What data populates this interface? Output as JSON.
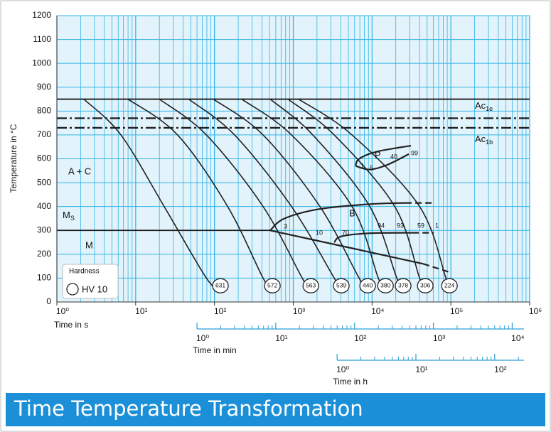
{
  "chart_data": {
    "type": "line",
    "title": "Time Temperature Transformation",
    "xlabel": "Time in s",
    "ylabel": "Temperature in °C",
    "xscale": "log",
    "xlim": [
      1,
      1000000
    ],
    "ylim": [
      0,
      1200
    ],
    "grid": true,
    "xticks": [
      {
        "value": 1,
        "label": "10⁰"
      },
      {
        "value": 10,
        "label": "10¹"
      },
      {
        "value": 100,
        "label": "10²"
      },
      {
        "value": 1000,
        "label": "10³"
      },
      {
        "value": 10000,
        "label": "10⁴"
      },
      {
        "value": 100000,
        "label": "10⁵"
      },
      {
        "value": 1000000,
        "label": "10⁶"
      }
    ],
    "yticks": [
      0,
      100,
      200,
      300,
      400,
      500,
      600,
      700,
      800,
      900,
      1000,
      1100,
      1200
    ],
    "min_axis": {
      "label": "Time in min",
      "ticks": [
        {
          "value": 60,
          "label": "10⁰"
        },
        {
          "value": 600,
          "label": "10¹"
        },
        {
          "value": 6000,
          "label": "10²"
        },
        {
          "value": 60000,
          "label": "10³"
        },
        {
          "value": 600000,
          "label": "10⁴"
        }
      ]
    },
    "hour_axis": {
      "label": "Time in h",
      "ticks": [
        {
          "value": 3600,
          "label": "10⁰"
        },
        {
          "value": 36000,
          "label": "10¹"
        },
        {
          "value": 360000,
          "label": "10²"
        }
      ]
    },
    "series": [
      {
        "color": "#222222",
        "hardness": 631,
        "x": [
          2.2,
          6.5,
          23,
          79,
          119
        ],
        "y": [
          850,
          700,
          400,
          100,
          50
        ]
      },
      {
        "color": "#222222",
        "hardness": 572,
        "x": [
          8,
          34,
          147,
          414,
          543
        ],
        "y": [
          850,
          700,
          400,
          100,
          50
        ]
      },
      {
        "color": "#222222",
        "hardness": 563,
        "x": [
          20,
          79,
          414,
          1300,
          1670
        ],
        "y": [
          850,
          700,
          400,
          100,
          50
        ]
      },
      {
        "color": "#222222",
        "hardness": 539,
        "x": [
          47,
          180,
          951,
          3310,
          4070
        ],
        "y": [
          850,
          700,
          400,
          100,
          50
        ]
      },
      {
        "color": "#222222",
        "hardness": 440,
        "x": [
          97,
          414,
          2180,
          6850,
          8790
        ],
        "y": [
          850,
          700,
          400,
          100,
          50
        ]
      },
      {
        "color": "#222222",
        "hardness": 380,
        "x": [
          222,
          951,
          5570,
          12000,
          14800
        ],
        "y": [
          850,
          700,
          400,
          100,
          50
        ]
      },
      {
        "color": "#222222",
        "hardness": 378,
        "x": [
          510,
          1770,
          9360,
          20600,
          24800
        ],
        "y": [
          850,
          700,
          400,
          100,
          50
        ]
      },
      {
        "color": "#222222",
        "hardness": 306,
        "x": [
          857,
          3310,
          19400,
          40100,
          47300
        ],
        "y": [
          850,
          700,
          400,
          100,
          50
        ]
      },
      {
        "color": "#222222",
        "hardness": 224,
        "x": [
          1170,
          5570,
          40100,
          86500,
          95900
        ],
        "y": [
          850,
          700,
          400,
          100,
          50
        ]
      }
    ],
    "boundaries": [
      {
        "color": "#222222",
        "dash": "solid",
        "x": [
          6180,
          6850,
          11500,
          31200
        ],
        "y": [
          570,
          600,
          630,
          655
        ]
      },
      {
        "color": "#222222",
        "dash": "solid",
        "x": [
          6180,
          9360,
          15700,
          29300
        ],
        "y": [
          570,
          555,
          575,
          620
        ]
      },
      {
        "color": "#222222",
        "dash": "solid",
        "x": [
          510,
          773,
          2180,
          9360,
          26400
        ],
        "y": [
          300,
          350,
          390,
          410,
          415
        ]
      },
      {
        "color": "#222222",
        "dash": "dashed",
        "x": [
          26400,
          58200
        ],
        "y": [
          415,
          415
        ]
      },
      {
        "color": "#222222",
        "dash": "solid",
        "x": [
          3310,
          4070,
          9360,
          32600
        ],
        "y": [
          250,
          275,
          288,
          290
        ]
      },
      {
        "color": "#222222",
        "dash": "dashed",
        "x": [
          32600,
          60700
        ],
        "y": [
          290,
          290
        ]
      },
      {
        "color": "#222222",
        "dash": "solid",
        "x": [
          510,
          44500
        ],
        "y": [
          300,
          160
        ]
      },
      {
        "color": "#222222",
        "dash": "dashed",
        "x": [
          44500,
          95900
        ],
        "y": [
          160,
          125
        ]
      }
    ],
    "levels": [
      {
        "value": 850,
        "dash": "solid",
        "x": [
          1,
          1000000
        ]
      },
      {
        "value": 770,
        "dash": "dashdot",
        "x": [
          1,
          1000000
        ],
        "name": "Ac",
        "sub": "1e"
      },
      {
        "value": 730,
        "dash": "dashdot",
        "x": [
          1,
          1000000
        ],
        "name": "Ac",
        "sub": "1b"
      },
      {
        "value": 300,
        "dash": "solid",
        "x": [
          1,
          510
        ],
        "name": "M",
        "sub": "S"
      }
    ],
    "annotations": [
      "A + C",
      "M",
      "P",
      "B",
      "3",
      "10",
      "70",
      "94",
      "93",
      "59",
      "1",
      "40",
      "5",
      "1",
      "99"
    ],
    "legend": {
      "title": "Hardness",
      "label": "HV 10"
    }
  }
}
